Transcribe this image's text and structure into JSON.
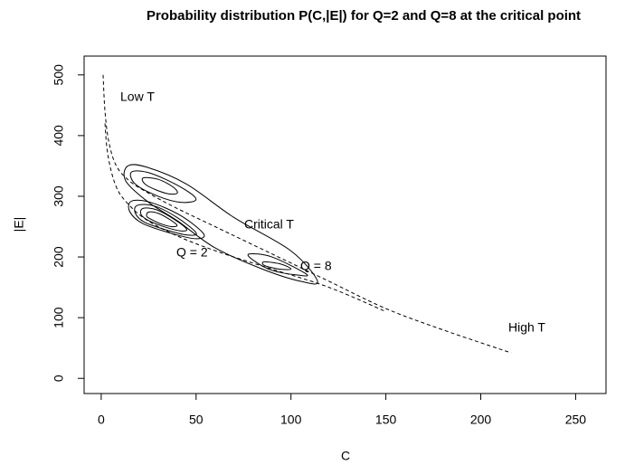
{
  "chart_data": {
    "type": "contour",
    "title": "Probability distribution P(C,|E|) for Q=2 and Q=8 at the critical point",
    "x_label": "C",
    "y_label": "|E|",
    "xlim": [
      -9,
      266
    ],
    "ylim": [
      -25,
      531
    ],
    "xticks": [
      0,
      50,
      100,
      150,
      200,
      250
    ],
    "yticks": [
      0,
      100,
      200,
      300,
      400,
      500
    ],
    "color": "#000000",
    "annotations": [
      "Low T",
      "Critical T",
      "High T"
    ],
    "series": [
      {
        "name": "Q = 2",
        "levels": [
          {
            "x": [
              16,
              26,
              42,
              54,
              50,
              38,
              22,
              15
            ],
            "y": [
              292,
              290,
              268,
              238,
              230,
              238,
              255,
              275
            ]
          },
          {
            "x": [
              19,
              28,
              40,
              50,
              46,
              36,
              23,
              18
            ],
            "y": [
              285,
              284,
              265,
              240,
              236,
              243,
              257,
              272
            ]
          },
          {
            "x": [
              22,
              29,
              38,
              45,
              42,
              34,
              25,
              21
            ],
            "y": [
              280,
              278,
              263,
              246,
              243,
              249,
              260,
              270
            ]
          },
          {
            "x": [
              25,
              30,
              36,
              40,
              37,
              32,
              27,
              24
            ],
            "y": [
              274,
              272,
              262,
              252,
              250,
              254,
              261,
              267
            ]
          }
        ]
      },
      {
        "name": "Q = 8",
        "levels": [
          {
            "x": [
              14,
              24,
              45,
              70,
              100,
              114,
              105,
              85,
              60,
              40,
              25,
              13
            ],
            "y": [
              350,
              348,
              320,
              265,
              210,
              160,
              160,
              180,
              215,
              260,
              290,
              325
            ]
          },
          {
            "x": [
              16,
              26,
              42,
              50,
              42,
              30,
              18
            ],
            "y": [
              340,
              338,
              315,
              295,
              290,
              300,
              320
            ]
          },
          {
            "x": [
              22,
              30,
              38,
              40,
              34,
              24
            ],
            "y": [
              330,
              328,
              315,
              305,
              305,
              318
            ]
          },
          {
            "x": [
              78,
              90,
              108,
              104,
              90,
              80
            ],
            "y": [
              205,
              200,
              172,
              170,
              178,
              195
            ]
          },
          {
            "x": [
              86,
              95,
              100,
              94,
              86
            ],
            "y": [
              192,
              188,
              180,
              180,
              186
            ]
          }
        ]
      }
    ],
    "curves": [
      {
        "x": [
          1,
          2,
          4,
          8,
          15,
          25,
          40,
          60,
          90,
          120,
          150,
          180,
          216
        ],
        "y": [
          500,
          440,
          390,
          350,
          325,
          305,
          280,
          250,
          205,
          160,
          115,
          80,
          42
        ]
      },
      {
        "x": [
          2,
          3,
          5,
          8,
          12,
          20,
          30,
          45,
          65,
          90,
          120,
          150
        ],
        "y": [
          420,
          380,
          345,
          315,
          295,
          270,
          250,
          228,
          205,
          180,
          150,
          110
        ]
      }
    ]
  }
}
